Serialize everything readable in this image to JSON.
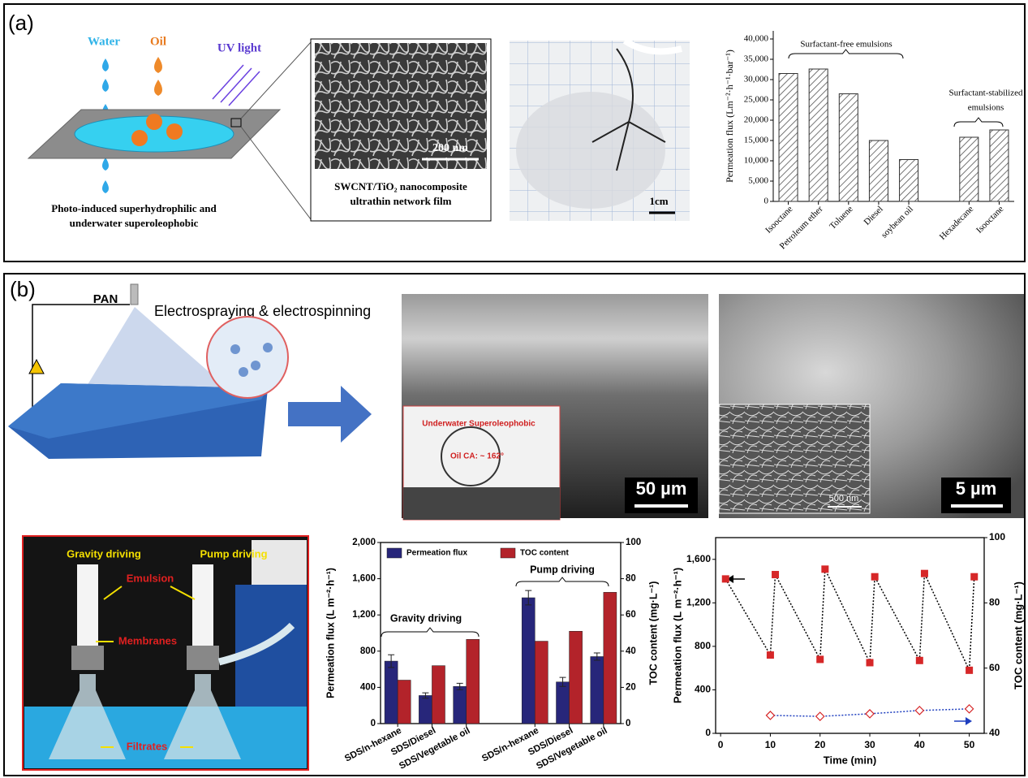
{
  "panels": {
    "a": {
      "label": "(a)",
      "water": "Water",
      "oil": "Oil",
      "uv": "UV light",
      "caption1": "Photo-induced superhydrophilic and",
      "caption2": "underwater superoleophobic",
      "scale_sem": "200 nm",
      "film1": "SWCNT/TiO₂ nanocomposite",
      "film2": "ultrathin network film",
      "scale_photo": "1cm"
    },
    "b": {
      "label": "(b)",
      "pan": "PAN",
      "process": "Electrospraying & electrospinning",
      "inset_title": "Underwater Superoleophobic",
      "inset_ca": "Oil CA: ~ 162°",
      "scale1": "50 µm",
      "scale2": "5 µm",
      "scale_inset": "500 nm",
      "gravity": "Gravity driving",
      "pump": "Pump driving",
      "emulsion": "Emulsion",
      "membranes": "Membranes",
      "filtrates": "Filtrates"
    }
  },
  "chart_data": [
    {
      "type": "bar",
      "ylabel": "Permeation flux (Lm⁻²·h⁻¹·bar⁻¹)",
      "categories": [
        "Isooctane",
        "Petroleum ether",
        "Toluene",
        "Diesel",
        "soybean oil",
        null,
        "Hexadecane",
        "Isooctane"
      ],
      "values": [
        31500,
        32600,
        26500,
        15000,
        10300,
        null,
        15800,
        17600
      ],
      "color": "#555555",
      "ylim": [
        0,
        42000
      ],
      "yticks": [
        0,
        {
          "value": 5000,
          "label": "5,000"
        },
        {
          "value": 10000,
          "label": "10,000"
        },
        {
          "value": 15000,
          "label": "15,000"
        },
        {
          "value": 20000,
          "label": "20,000"
        },
        {
          "value": 25000,
          "label": "25,000"
        },
        {
          "value": 30000,
          "label": "30,000"
        },
        {
          "value": 35000,
          "label": "35,000"
        },
        {
          "value": 40000,
          "label": "40,000"
        }
      ],
      "annotations": [
        "Surfactant-free emulsions",
        "Surfactant-stabilized",
        "emulsions"
      ]
    },
    {
      "type": "bar",
      "ylabel": "Permeation flux (L m⁻²·h⁻¹)",
      "y2label": "TOC content (mg·L⁻¹)",
      "categories": [
        "SDS/n-hexane",
        "SDS/Diesel",
        "SDS/Vegetable oil",
        null,
        "SDS/n-hexane",
        "SDS/Diesel",
        "SDS/Vegetable oil"
      ],
      "series": [
        {
          "name": "Permeation flux",
          "color": "#27267a",
          "values": [
            690,
            310,
            410,
            null,
            1390,
            460,
            740
          ],
          "errors": [
            70,
            30,
            35,
            null,
            80,
            50,
            40
          ]
        },
        {
          "name": "TOC content",
          "color": "#b3232a",
          "axis": "y2",
          "values": [
            24,
            32,
            46.5,
            null,
            45.5,
            51,
            72.5
          ]
        }
      ],
      "ylim": [
        0,
        2000
      ],
      "yticks": [
        0,
        400,
        800,
        {
          "value": 1200,
          "label": "1,200"
        },
        {
          "value": 1600,
          "label": "1,600"
        },
        {
          "value": 2000,
          "label": "2,000"
        }
      ],
      "y2lim": [
        0,
        100
      ],
      "y2ticks": [
        0,
        20,
        40,
        60,
        80,
        100
      ],
      "annotations": [
        "Pump driving",
        "Gravity driving"
      ]
    },
    {
      "type": "line",
      "xlabel": "Time (min)",
      "ylabel": "Permeation flux (L m⁻²·h⁻¹)",
      "y2label": "TOC content (mg·L⁻¹)",
      "series": [
        {
          "color": "#d62728",
          "line_color": "#000000",
          "marker": "square",
          "x": [
            1,
            10,
            11,
            20,
            21,
            30,
            31,
            40,
            41,
            50,
            51
          ],
          "values": [
            1420,
            720,
            1460,
            680,
            1510,
            650,
            1440,
            670,
            1470,
            580,
            1440
          ]
        },
        {
          "color": "#d62728",
          "line_color": "#1f3fbf",
          "marker": "diamond",
          "axis": "y2",
          "x": [
            10,
            20,
            30,
            40,
            50
          ],
          "values": [
            45.5,
            45.2,
            46,
            47,
            47.5
          ]
        }
      ],
      "xlim": [
        -1,
        53
      ],
      "xticks": [
        0,
        10,
        20,
        30,
        40,
        50
      ],
      "ylim": [
        0,
        1800
      ],
      "yticks": [
        0,
        400,
        800,
        {
          "value": 1200,
          "label": "1,200"
        },
        {
          "value": 1600,
          "label": "1,600"
        }
      ],
      "y2lim": [
        40,
        100
      ],
      "y2ticks": [
        40,
        60,
        80,
        100
      ]
    }
  ]
}
